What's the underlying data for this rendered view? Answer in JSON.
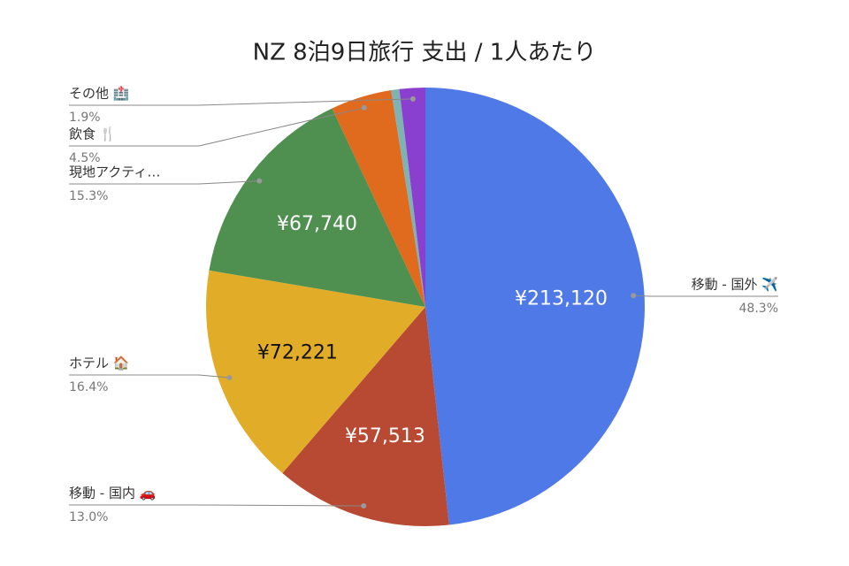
{
  "chart_data": {
    "type": "pie",
    "title": "NZ 8泊9日旅行 支出 / 1人あたり",
    "categories": [
      "移動 - 国外 ✈️",
      "移動 - 国内 🚗",
      "ホテル 🏠",
      "現地アクティ…",
      "飲食 🍴",
      null,
      "その他 🏥"
    ],
    "values": [
      213120,
      57513,
      72221,
      67740,
      19856,
      2647,
      8384
    ],
    "value_labels": [
      "¥213,120",
      "¥57,513",
      "¥72,221",
      "¥67,740",
      null,
      null,
      null
    ],
    "percent_labels": [
      "48.3%",
      "13.0%",
      "16.4%",
      "15.3%",
      "4.5%",
      null,
      "1.9%"
    ],
    "colors": [
      "#5079e8",
      "#b84a33",
      "#e1ad28",
      "#4f8f50",
      "#e06a1e",
      "#7fb3b3",
      "#8b3fcf"
    ],
    "value_label_colors": [
      "#ffffff",
      "#ffffff",
      "#111111",
      "#ffffff",
      "#ffffff",
      "#ffffff",
      "#ffffff"
    ]
  }
}
